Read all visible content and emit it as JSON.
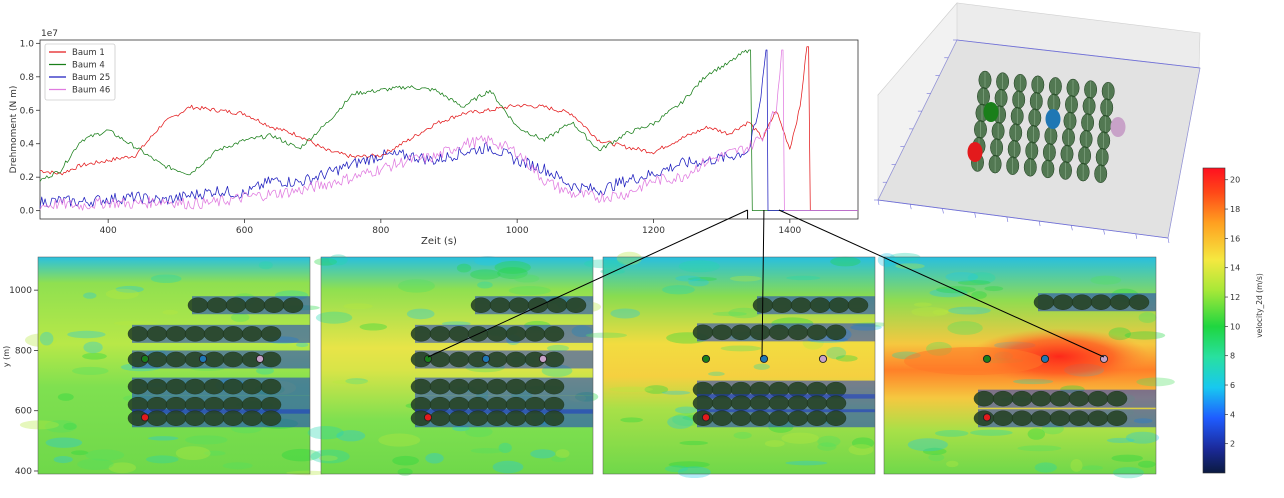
{
  "chart_data": [
    {
      "type": "line",
      "xlabel": "Zeit (s)",
      "ylabel": "Drehmoment (N m)",
      "y_scale_label": "1e7",
      "xlim": [
        300,
        1500
      ],
      "ylim": [
        -0.05,
        1.02
      ],
      "xticks": [
        400,
        600,
        800,
        1000,
        1200,
        1400
      ],
      "yticks": [
        0.0,
        0.2,
        0.4,
        0.6,
        0.8,
        1.0
      ],
      "legend_position": "top-left",
      "series": [
        {
          "name": "Baum 1",
          "color": "#e31a1c",
          "x": [
            300,
            330,
            360,
            400,
            440,
            480,
            520,
            560,
            600,
            640,
            680,
            720,
            760,
            800,
            840,
            880,
            920,
            960,
            1000,
            1040,
            1080,
            1120,
            1160,
            1200,
            1240,
            1280,
            1310,
            1340,
            1360,
            1380,
            1400,
            1415,
            1425,
            1430,
            1440,
            1500
          ],
          "y": [
            0.24,
            0.22,
            0.27,
            0.3,
            0.33,
            0.52,
            0.62,
            0.6,
            0.58,
            0.5,
            0.45,
            0.36,
            0.32,
            0.33,
            0.42,
            0.52,
            0.58,
            0.6,
            0.63,
            0.62,
            0.58,
            0.42,
            0.38,
            0.35,
            0.43,
            0.5,
            0.46,
            0.53,
            0.43,
            0.6,
            0.37,
            0.62,
            0.98,
            0.0,
            0.0,
            0.0
          ]
        },
        {
          "name": "Baum 4",
          "color": "#1a7f1a",
          "x": [
            300,
            330,
            360,
            400,
            440,
            480,
            520,
            560,
            600,
            640,
            680,
            720,
            760,
            800,
            840,
            880,
            920,
            960,
            1000,
            1040,
            1080,
            1120,
            1160,
            1200,
            1240,
            1280,
            1310,
            1330,
            1340,
            1345,
            1500
          ],
          "y": [
            0.18,
            0.24,
            0.42,
            0.48,
            0.38,
            0.27,
            0.22,
            0.36,
            0.42,
            0.45,
            0.37,
            0.52,
            0.7,
            0.72,
            0.74,
            0.72,
            0.62,
            0.72,
            0.5,
            0.42,
            0.53,
            0.36,
            0.46,
            0.52,
            0.64,
            0.82,
            0.88,
            0.94,
            0.96,
            0.0,
            0.0
          ]
        },
        {
          "name": "Baum 25",
          "color": "#1f1fbf",
          "x": [
            300,
            330,
            360,
            400,
            440,
            480,
            520,
            560,
            600,
            640,
            680,
            720,
            760,
            800,
            840,
            880,
            920,
            960,
            1000,
            1040,
            1080,
            1120,
            1160,
            1200,
            1240,
            1280,
            1310,
            1340,
            1355,
            1365,
            1368,
            1500
          ],
          "y": [
            0.05,
            0.06,
            0.05,
            0.07,
            0.08,
            0.06,
            0.09,
            0.12,
            0.1,
            0.18,
            0.17,
            0.22,
            0.28,
            0.33,
            0.33,
            0.3,
            0.35,
            0.38,
            0.3,
            0.25,
            0.15,
            0.12,
            0.18,
            0.22,
            0.28,
            0.3,
            0.32,
            0.36,
            0.6,
            0.96,
            0.0,
            0.0
          ]
        },
        {
          "name": "Baum 46",
          "color": "#e07be0",
          "x": [
            300,
            330,
            360,
            400,
            440,
            480,
            520,
            560,
            600,
            640,
            680,
            720,
            760,
            800,
            840,
            880,
            920,
            960,
            1000,
            1040,
            1080,
            1120,
            1160,
            1200,
            1240,
            1280,
            1310,
            1340,
            1360,
            1380,
            1388,
            1392,
            1500
          ],
          "y": [
            0.03,
            0.04,
            0.03,
            0.05,
            0.04,
            0.06,
            0.04,
            0.05,
            0.08,
            0.1,
            0.12,
            0.16,
            0.2,
            0.25,
            0.3,
            0.32,
            0.4,
            0.42,
            0.35,
            0.18,
            0.1,
            0.08,
            0.1,
            0.18,
            0.2,
            0.3,
            0.34,
            0.38,
            0.45,
            0.6,
            0.96,
            0.0,
            0.0
          ]
        }
      ]
    },
    {
      "type": "heatmap",
      "description_panels": 4,
      "ylabel": "y (m)",
      "yticks": [
        400,
        600,
        800,
        1000
      ],
      "ylim": [
        390,
        1110
      ],
      "colorbar": {
        "label": "velocity_2d (m/s)",
        "min": 0,
        "max": 20.8,
        "ticks": [
          2,
          4,
          6,
          8,
          10,
          12,
          14,
          16,
          18,
          20
        ]
      },
      "marker_colors": [
        "#e31a1c",
        "#1a7f1a",
        "#1f77b4",
        "#c8a2c8"
      ]
    }
  ],
  "ui": {
    "colors": {
      "axis": "#333333",
      "grid_box": "#c8c8c8",
      "tree_fill": "#2e5e2e"
    }
  }
}
